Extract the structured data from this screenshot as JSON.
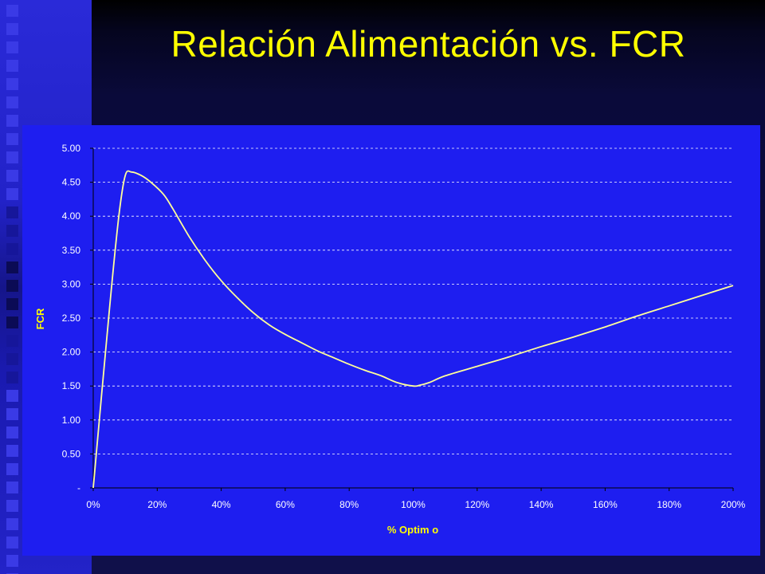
{
  "slide": {
    "title": "Relación Alimentación vs. FCR",
    "title_color": "#ffff00",
    "chart_background": "#1e1ef0",
    "line_color": "#ffff99"
  },
  "chart_data": {
    "type": "line",
    "title": "",
    "xlabel": "% Optim o",
    "ylabel": "FCR",
    "xlim": [
      0,
      200
    ],
    "ylim": [
      0,
      5
    ],
    "x_ticks": [
      "0%",
      "20%",
      "40%",
      "60%",
      "80%",
      "100%",
      "120%",
      "140%",
      "160%",
      "180%",
      "200%"
    ],
    "y_ticks": [
      "-",
      "0.50",
      "1.00",
      "1.50",
      "2.00",
      "2.50",
      "3.00",
      "3.50",
      "4.00",
      "4.50",
      "5.00"
    ],
    "y_tick_values": [
      0,
      0.5,
      1,
      1.5,
      2,
      2.5,
      3,
      3.5,
      4,
      4.5,
      5
    ],
    "grid": true,
    "legend": "none",
    "series": [
      {
        "x": [
          0,
          5,
          8,
          10,
          12,
          15,
          18,
          22,
          25,
          30,
          35,
          40,
          45,
          50,
          55,
          60,
          65,
          70,
          75,
          80,
          85,
          90,
          95,
          100,
          102,
          105,
          110,
          120,
          130,
          140,
          150,
          160,
          170,
          180,
          190,
          200
        ],
        "values": [
          0,
          2.6,
          4.0,
          4.6,
          4.65,
          4.6,
          4.5,
          4.32,
          4.1,
          3.7,
          3.35,
          3.05,
          2.8,
          2.58,
          2.4,
          2.26,
          2.14,
          2.02,
          1.92,
          1.82,
          1.73,
          1.65,
          1.55,
          1.5,
          1.51,
          1.55,
          1.65,
          1.79,
          1.93,
          2.08,
          2.22,
          2.37,
          2.53,
          2.68,
          2.83,
          2.98
        ]
      }
    ]
  }
}
